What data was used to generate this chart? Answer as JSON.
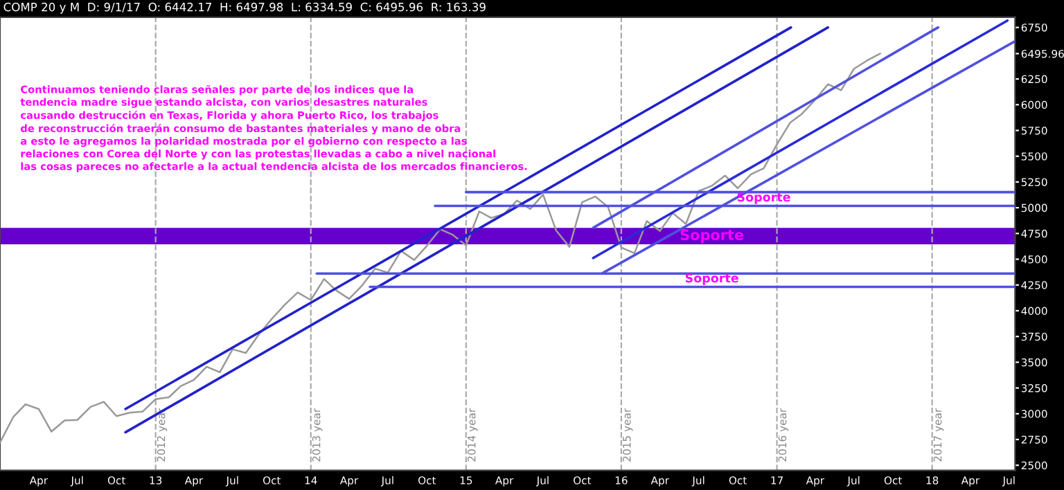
{
  "chart_data": {
    "type": "line",
    "title": "COMP 20 y M  D: 9/1/17  O: 6442.17  H: 6497.98  L: 6334.59  C: 6495.96  R: 163.39",
    "annotations": [
      "Continuamos teniendo claras señales por parte de los indices que la\ntendencia madre sigue estando alcista, con varios desastres naturales\ncausando destrucción en Texas, Florida y ahora Puerto Rico, los trabajos\nde reconstrucción traerán consumo de bastantes materiales y mano de obra\na esto le agregamos la polaridad mostrada por el gobierno con respecto a las\nrelaciones con Corea del Norte y con las protestas llevadas a cabo a nivel nacional\nlas cosas pareces no afectarle a la actual tendencia alcista de los mercados financieros.",
      {
        "text": "Soporte",
        "x": "2016-12",
        "y": 5018
      },
      {
        "text": "Soporte",
        "x": "2016-08",
        "y": 4232
      }
    ],
    "series": [
      {
        "color": "#999999",
        "x": [
          "2012-01",
          "2012-02",
          "2012-03",
          "2012-04",
          "2012-05",
          "2012-06",
          "2012-07",
          "2012-08",
          "2012-09",
          "2012-10",
          "2012-11",
          "2012-12",
          "2013-01",
          "2013-02",
          "2013-03",
          "2013-04",
          "2013-05",
          "2013-06",
          "2013-07",
          "2013-08",
          "2013-09",
          "2013-10",
          "2013-11",
          "2013-12",
          "2014-01",
          "2014-02",
          "2014-03",
          "2014-04",
          "2014-05",
          "2014-06",
          "2014-07",
          "2014-08",
          "2014-09",
          "2014-10",
          "2014-11",
          "2014-12",
          "2015-01",
          "2015-02",
          "2015-03",
          "2015-04",
          "2015-05",
          "2015-06",
          "2015-07",
          "2015-08",
          "2015-09",
          "2015-10",
          "2015-11",
          "2015-12",
          "2016-01",
          "2016-02",
          "2016-03",
          "2016-04",
          "2016-05",
          "2016-06",
          "2016-07",
          "2016-08",
          "2016-09",
          "2016-10",
          "2016-11",
          "2016-12",
          "2017-01",
          "2017-02",
          "2017-03",
          "2017-04",
          "2017-05",
          "2017-06",
          "2017-07",
          "2017-08",
          "2017-09"
        ],
        "values": [
          2720,
          2967,
          3092,
          3046,
          2827,
          2935,
          2940,
          3067,
          3116,
          2977,
          3010,
          3020,
          3142,
          3160,
          3268,
          3329,
          3456,
          3403,
          3626,
          3590,
          3771,
          3920,
          4060,
          4177,
          4104,
          4308,
          4199,
          4115,
          4243,
          4408,
          4370,
          4580,
          4493,
          4631,
          4792,
          4736,
          4635,
          4964,
          4901,
          4941,
          5070,
          4987,
          5128,
          4777,
          4620,
          5054,
          5109,
          5007,
          4614,
          4558,
          4870,
          4775,
          4948,
          4843,
          5162,
          5213,
          5312,
          5189,
          5324,
          5383,
          5615,
          5825,
          5912,
          6048,
          6199,
          6140,
          6348,
          6429,
          6496
        ]
      },
      {
        "color": "#2222cc",
        "x": [
          "2012-10-22",
          "2017-02-03"
        ],
        "values": [
          3046,
          6750
        ]
      },
      {
        "color": "#2222cc",
        "x": [
          "2012-10-22",
          "2017-05-01"
        ],
        "values": [
          2820,
          6750
        ]
      },
      {
        "color": "#5050e0",
        "x": [
          "2015-10-27",
          "2018-01-15"
        ],
        "values": [
          4805,
          6750
        ]
      },
      {
        "color": "#2a2ad8",
        "x": [
          "2015-10-27",
          "2018-06-27"
        ],
        "values": [
          4512,
          6817
        ]
      },
      {
        "color": "#5050e0",
        "x": [
          "2015-11-18",
          "2018-07-15"
        ],
        "values": [
          4365,
          6617
        ]
      },
      {
        "color": "#5050e0",
        "x": [
          "2015-01-01",
          "2018-07-15"
        ],
        "values": [
          5151,
          5151
        ]
      },
      {
        "color": "#5050e0",
        "x": [
          "2014-10-20",
          "2018-07-15"
        ],
        "values": [
          5018,
          5018
        ]
      },
      {
        "color": "#5050e0",
        "x": [
          "2014-01-15",
          "2018-07-15"
        ],
        "values": [
          4361,
          4361
        ]
      },
      {
        "color": "#5050e0",
        "x": [
          "2014-05-20",
          "2018-07-15"
        ],
        "values": [
          4232,
          4232
        ]
      }
    ],
    "bands": [
      {
        "axis": "y",
        "from": 4645,
        "to": 4805,
        "color": "#6600cc",
        "label": "Soporte"
      }
    ],
    "ref_lines": [
      {
        "axis": "x",
        "value": "2013-01-01",
        "label": "2012 year",
        "line_style": "dashed",
        "color": "#aaaaaa"
      },
      {
        "axis": "x",
        "value": "2014-01-01",
        "label": "2013 year",
        "line_style": "dashed",
        "color": "#aaaaaa"
      },
      {
        "axis": "x",
        "value": "2015-01-01",
        "label": "2014 year",
        "line_style": "dashed",
        "color": "#aaaaaa"
      },
      {
        "axis": "x",
        "value": "2016-01-01",
        "label": "2015 year",
        "line_style": "dashed",
        "color": "#aaaaaa"
      },
      {
        "axis": "x",
        "value": "2017-01-01",
        "label": "2016 year",
        "line_style": "dashed",
        "color": "#aaaaaa"
      },
      {
        "axis": "x",
        "value": "2018-01-01",
        "label": "2017 year",
        "line_style": "dashed",
        "color": "#aaaaaa"
      }
    ],
    "xlim": [
      "2012-01-01",
      "2018-07-15"
    ],
    "xticks": [
      {
        "value": "2012-04",
        "label": "Apr"
      },
      {
        "value": "2012-07",
        "label": "Jul"
      },
      {
        "value": "2012-10",
        "label": "Oct"
      },
      {
        "value": "2013-01",
        "label": "13"
      },
      {
        "value": "2013-04",
        "label": "Apr"
      },
      {
        "value": "2013-07",
        "label": "Jul"
      },
      {
        "value": "2013-10",
        "label": "Oct"
      },
      {
        "value": "2014-01",
        "label": "14"
      },
      {
        "value": "2014-04",
        "label": "Apr"
      },
      {
        "value": "2014-07",
        "label": "Jul"
      },
      {
        "value": "2014-10",
        "label": "Oct"
      },
      {
        "value": "2015-01",
        "label": "15"
      },
      {
        "value": "2015-04",
        "label": "Apr"
      },
      {
        "value": "2015-07",
        "label": "Jul"
      },
      {
        "value": "2015-10",
        "label": "Oct"
      },
      {
        "value": "2016-01",
        "label": "16"
      },
      {
        "value": "2016-04",
        "label": "Apr"
      },
      {
        "value": "2016-07",
        "label": "Jul"
      },
      {
        "value": "2016-10",
        "label": "Oct"
      },
      {
        "value": "2017-01",
        "label": "17"
      },
      {
        "value": "2017-04",
        "label": "Apr"
      },
      {
        "value": "2017-07",
        "label": "Jul"
      },
      {
        "value": "2017-10",
        "label": "Oct"
      },
      {
        "value": "2018-01",
        "label": "18"
      },
      {
        "value": "2018-04",
        "label": "Apr"
      },
      {
        "value": "2018-07",
        "label": "Jul"
      }
    ],
    "ylim": [
      2450,
      6850
    ],
    "yticks": [
      2500,
      2750,
      3000,
      3250,
      3500,
      3750,
      4000,
      4250,
      4500,
      4750,
      5000,
      5250,
      5500,
      5750,
      6000,
      6250,
      {
        "value": 6495.96,
        "label": "6495.96"
      },
      6750
    ],
    "grid": false,
    "legend": false
  }
}
